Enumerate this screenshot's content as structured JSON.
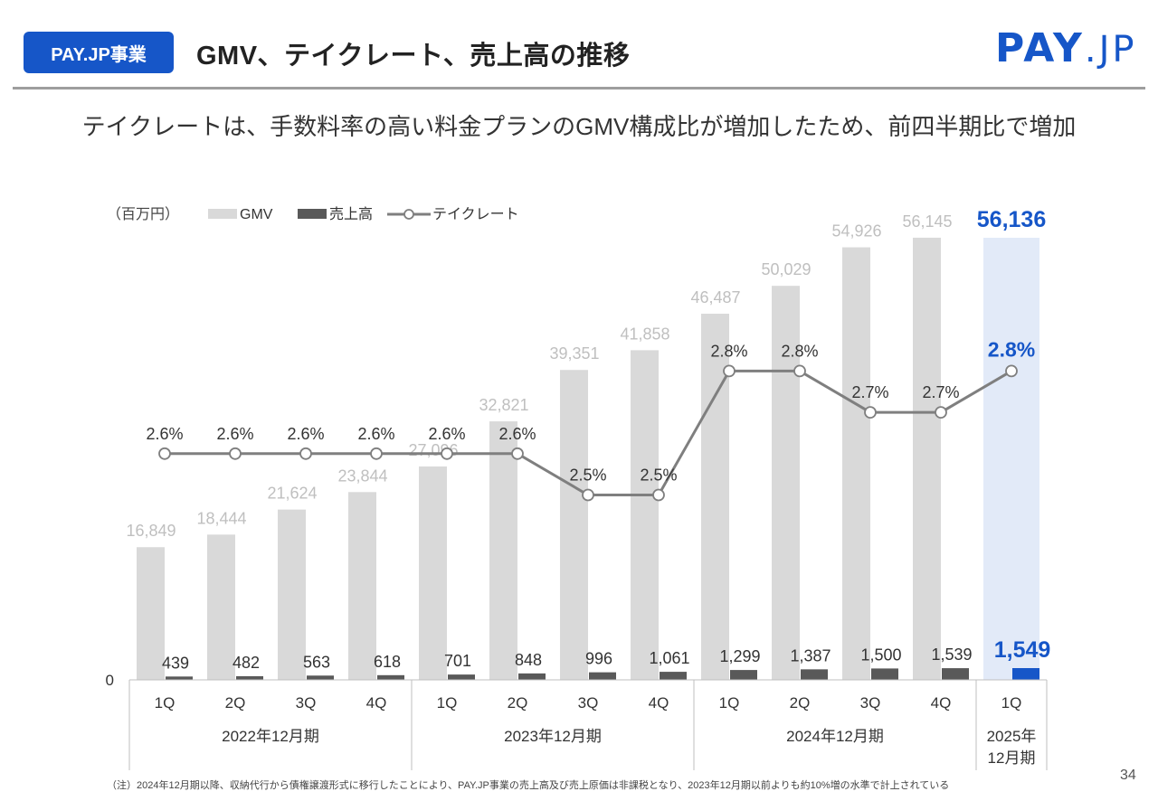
{
  "header": {
    "badge": "PAY.JP事業",
    "title": "GMV、テイクレート、売上高の推移",
    "logo_left": "PAY",
    "logo_right": ".JP",
    "subtitle": "テイクレートは、手数料率の高い料金プランのGMV構成比が増加したため、前四半期比で増加"
  },
  "footer": {
    "note": "（注）2024年12月期以降、収納代行から債権譲渡形式に移行したことにより、PAY.JP事業の売上高及び売上原価は非課税となり、2023年12月期以前よりも約10%増の水準で計上されている",
    "page_number": "34"
  },
  "colors": {
    "brand": "#1656c8",
    "gmv_bar": "#d9d9d9",
    "gmv_highlight": "#e2eaf8",
    "revenue_bar": "#595959",
    "rate_line": "#7f7f7f",
    "gmv_label": "#bfbfbf"
  },
  "chart_data": {
    "type": "bar",
    "unit_label": "（百万円）",
    "zero_label": "0",
    "legend": {
      "gmv": "GMV",
      "revenue": "売上高",
      "rate": "テイクレート"
    },
    "categories": [
      "1Q",
      "2Q",
      "3Q",
      "4Q",
      "1Q",
      "2Q",
      "3Q",
      "4Q",
      "1Q",
      "2Q",
      "3Q",
      "4Q",
      "1Q"
    ],
    "fiscal_groups": [
      {
        "label": "2022年12月期",
        "count": 4
      },
      {
        "label": "2023年12月期",
        "count": 4
      },
      {
        "label": "2024年12月期",
        "count": 4
      },
      {
        "label": "2025年\n12月期",
        "count": 1
      }
    ],
    "series": [
      {
        "name": "GMV",
        "type": "bar",
        "values": [
          16849,
          18444,
          21624,
          23844,
          27096,
          32821,
          39351,
          41858,
          46487,
          50029,
          54926,
          56145,
          56136
        ],
        "labels": [
          "16,849",
          "18,444",
          "21,624",
          "23,844",
          "27,096",
          "32,821",
          "39,351",
          "41,858",
          "46,487",
          "50,029",
          "54,926",
          "56,145",
          "56,136"
        ]
      },
      {
        "name": "売上高",
        "type": "bar",
        "values": [
          439,
          482,
          563,
          618,
          701,
          848,
          996,
          1061,
          1299,
          1387,
          1500,
          1539,
          1549
        ],
        "labels": [
          "439",
          "482",
          "563",
          "618",
          "701",
          "848",
          "996",
          "1,061",
          "1,299",
          "1,387",
          "1,500",
          "1,539",
          "1,549"
        ]
      },
      {
        "name": "テイクレート",
        "type": "line",
        "values": [
          2.6,
          2.6,
          2.6,
          2.6,
          2.6,
          2.6,
          2.5,
          2.5,
          2.8,
          2.8,
          2.7,
          2.7,
          2.8
        ],
        "labels": [
          "2.6%",
          "2.6%",
          "2.6%",
          "2.6%",
          "2.6%",
          "2.6%",
          "2.5%",
          "2.5%",
          "2.8%",
          "2.8%",
          "2.7%",
          "2.7%",
          "2.8%"
        ]
      }
    ],
    "highlight_last": true
  }
}
